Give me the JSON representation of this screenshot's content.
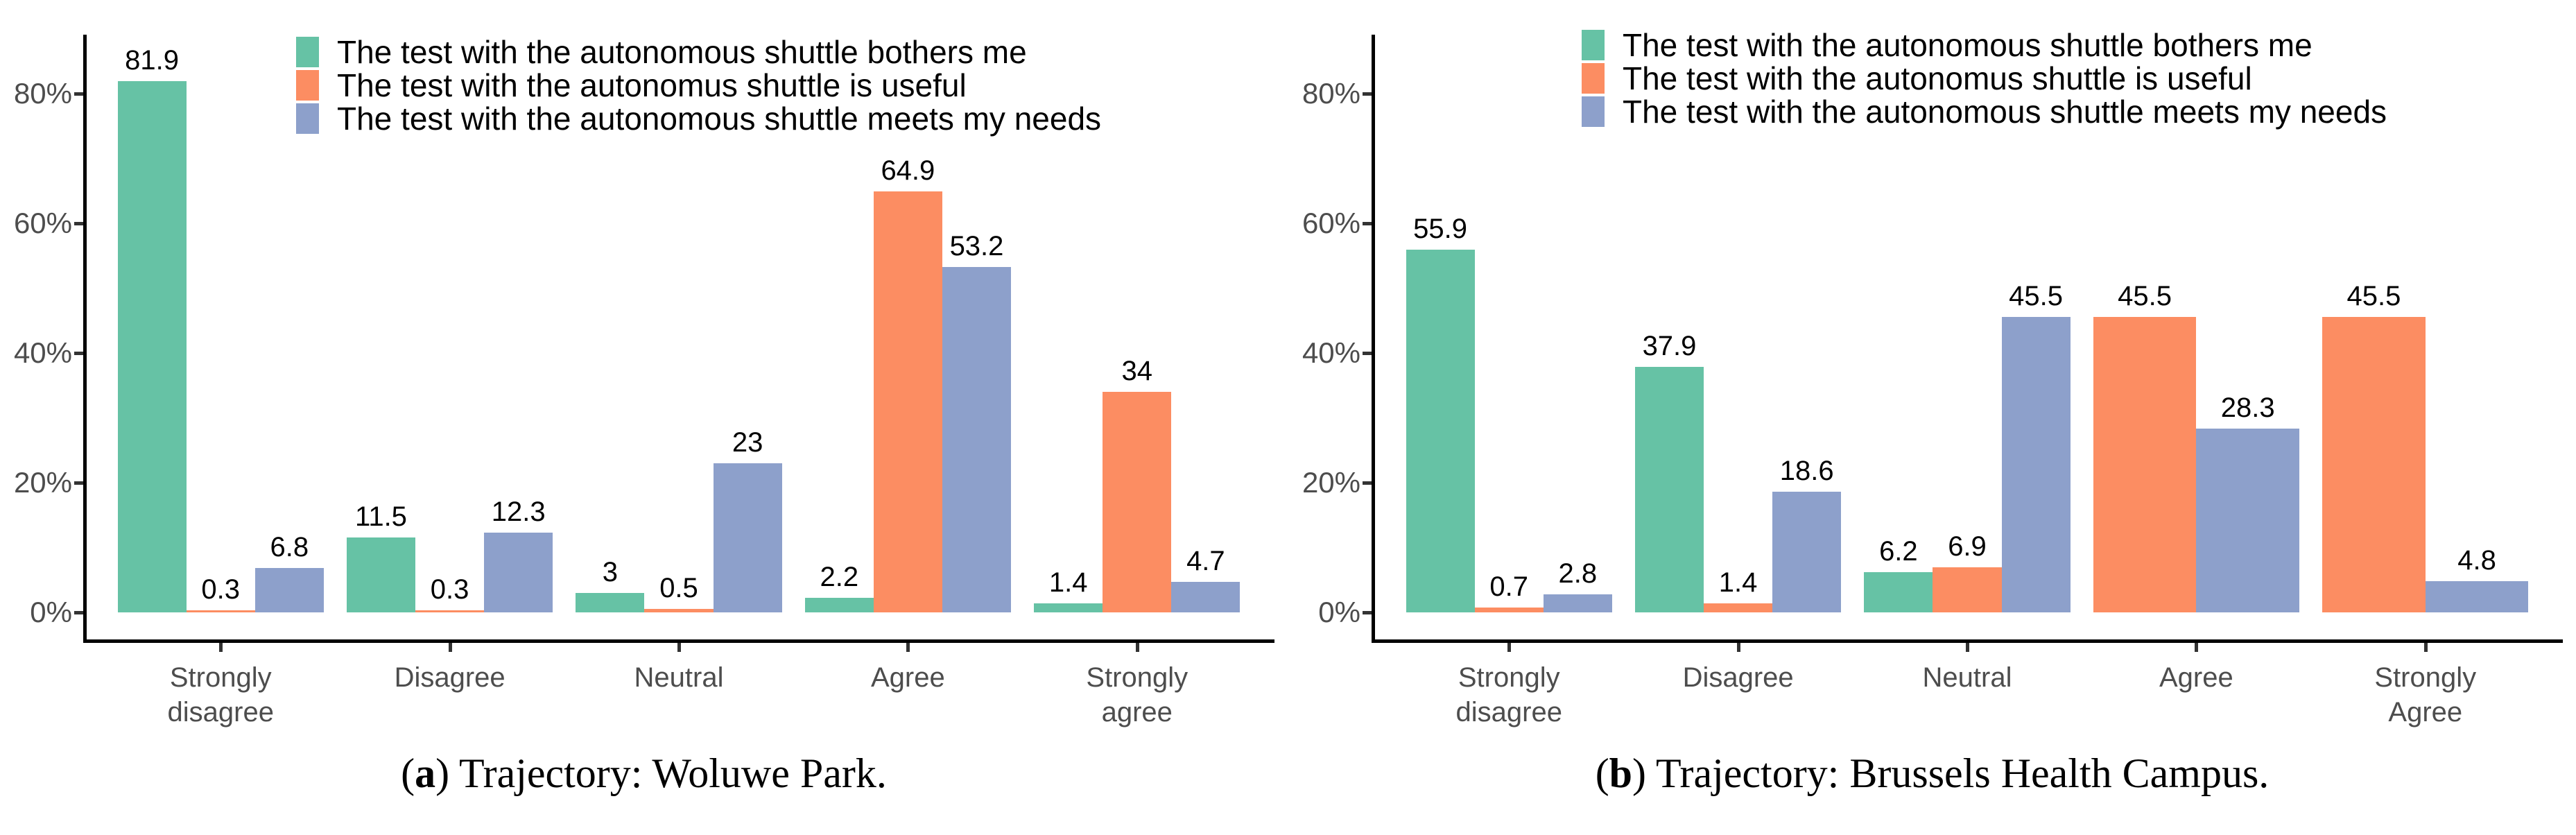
{
  "styles": {
    "background": "#ffffff",
    "axis_text_color": "#4d4d4d",
    "axis_line_color": "#000000",
    "tick_color": "#333333",
    "bar_label_color": "#000000",
    "series_colors": {
      "green": "#66C2A5",
      "orange": "#FC8D62",
      "blue": "#8DA0CB"
    }
  },
  "chart_data": [
    {
      "type": "bar",
      "panel_id": "a",
      "caption": {
        "prefix": "(",
        "label": "a",
        "suffix": ")",
        "text": " Trajectory: Woluwe Park."
      },
      "ylim": [
        0,
        89
      ],
      "grid": false,
      "legend_position": "top-left-inside",
      "y_ticks": [
        {
          "value": 0,
          "label": "0%"
        },
        {
          "value": 20,
          "label": "20%"
        },
        {
          "value": 40,
          "label": "40%"
        },
        {
          "value": 60,
          "label": "60%"
        },
        {
          "value": 80,
          "label": "80%"
        }
      ],
      "categories": [
        {
          "lines": [
            "Strongly",
            "disagree"
          ]
        },
        {
          "lines": [
            "Disagree"
          ]
        },
        {
          "lines": [
            "Neutral"
          ]
        },
        {
          "lines": [
            "Agree"
          ]
        },
        {
          "lines": [
            "Strongly",
            "agree"
          ]
        }
      ],
      "series": [
        {
          "name": "The test with the autonomous shuttle bothers me",
          "color_key": "green",
          "values": [
            81.9,
            11.5,
            3,
            2.2,
            1.4
          ],
          "labels": [
            "81.9",
            "11.5",
            "3",
            "2.2",
            "1.4"
          ]
        },
        {
          "name": "The test with the autonomus shuttle is useful",
          "color_key": "orange",
          "values": [
            0.3,
            0.3,
            0.5,
            64.9,
            34
          ],
          "labels": [
            "0.3",
            "0.3",
            "0.5",
            "64.9",
            "34"
          ]
        },
        {
          "name": "The test with the autonomous shuttle meets my needs",
          "color_key": "blue",
          "values": [
            6.8,
            12.3,
            23,
            53.2,
            4.7
          ],
          "labels": [
            "6.8",
            "12.3",
            "23",
            "53.2",
            "4.7"
          ]
        }
      ]
    },
    {
      "type": "bar",
      "panel_id": "b",
      "caption": {
        "prefix": "(",
        "label": "b",
        "suffix": ")",
        "text": " Trajectory: Brussels Health Campus."
      },
      "ylim": [
        0,
        89
      ],
      "grid": false,
      "legend_position": "top-left-inside",
      "y_ticks": [
        {
          "value": 0,
          "label": "0%"
        },
        {
          "value": 20,
          "label": "20%"
        },
        {
          "value": 40,
          "label": "40%"
        },
        {
          "value": 60,
          "label": "60%"
        },
        {
          "value": 80,
          "label": "80%"
        }
      ],
      "categories": [
        {
          "lines": [
            "Strongly",
            "disagree"
          ]
        },
        {
          "lines": [
            "Disagree"
          ]
        },
        {
          "lines": [
            "Neutral"
          ]
        },
        {
          "lines": [
            "Agree"
          ]
        },
        {
          "lines": [
            "Strongly",
            "Agree"
          ]
        }
      ],
      "series": [
        {
          "name": "The test with the autonomous shuttle bothers me",
          "color_key": "green",
          "values": [
            55.9,
            37.9,
            6.2,
            null,
            null
          ],
          "labels": [
            "55.9",
            "37.9",
            "6.2",
            null,
            null
          ]
        },
        {
          "name": "The test with the autonomus shuttle is useful",
          "color_key": "orange",
          "values": [
            0.7,
            1.4,
            6.9,
            45.5,
            45.5
          ],
          "labels": [
            "0.7",
            "1.4",
            "6.9",
            "45.5",
            "45.5"
          ]
        },
        {
          "name": "The test with the autonomous shuttle meets my needs",
          "color_key": "blue",
          "values": [
            2.8,
            18.6,
            45.5,
            28.3,
            4.8
          ],
          "labels": [
            "2.8",
            "18.6",
            "45.5",
            "28.3",
            "4.8"
          ]
        }
      ]
    }
  ]
}
